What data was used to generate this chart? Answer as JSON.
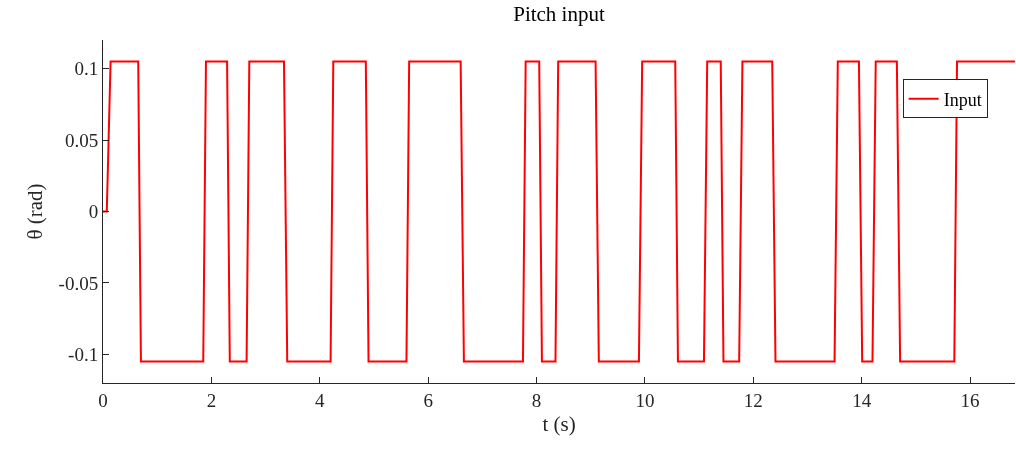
{
  "chart_data": {
    "type": "line",
    "title": "Pitch input",
    "xlabel": "t (s)",
    "ylabel": "θ (rad)",
    "xlim": [
      0,
      16.83
    ],
    "xticks": [
      0,
      2,
      4,
      6,
      8,
      10,
      12,
      14,
      16
    ],
    "ylim": [
      -0.12,
      0.12
    ],
    "yticks": [
      -0.1,
      -0.05,
      0,
      0.05,
      0.1
    ],
    "legend": "top right",
    "marker": "none",
    "line_style": "solid",
    "series": [
      {
        "name": "Input",
        "color": "#ff0000",
        "x": [
          0,
          0.07,
          0.14,
          0.65,
          0.7,
          1.85,
          1.9,
          2.29,
          2.34,
          2.65,
          2.7,
          3.34,
          3.4,
          4.2,
          4.25,
          4.85,
          4.9,
          5.6,
          5.65,
          6.6,
          6.66,
          7.75,
          7.8,
          8.05,
          8.1,
          8.35,
          8.4,
          9.09,
          9.15,
          9.89,
          9.95,
          10.56,
          10.61,
          11.09,
          11.15,
          11.4,
          11.45,
          11.74,
          11.8,
          12.35,
          12.41,
          13.5,
          13.56,
          13.95,
          14.01,
          14.2,
          14.26,
          14.65,
          14.71,
          15.71,
          15.76,
          16.83
        ],
        "values": [
          0,
          0,
          0.105,
          0.105,
          -0.105,
          -0.105,
          0.105,
          0.105,
          -0.105,
          -0.105,
          0.105,
          0.105,
          -0.105,
          -0.105,
          0.105,
          0.105,
          -0.105,
          -0.105,
          0.105,
          0.105,
          -0.105,
          -0.105,
          0.105,
          0.105,
          -0.105,
          -0.105,
          0.105,
          0.105,
          -0.105,
          -0.105,
          0.105,
          0.105,
          -0.105,
          -0.105,
          0.105,
          0.105,
          -0.105,
          -0.105,
          0.105,
          0.105,
          -0.105,
          -0.105,
          0.105,
          0.105,
          -0.105,
          -0.105,
          0.105,
          0.105,
          -0.105,
          -0.105,
          0.105,
          0.105
        ]
      }
    ]
  }
}
